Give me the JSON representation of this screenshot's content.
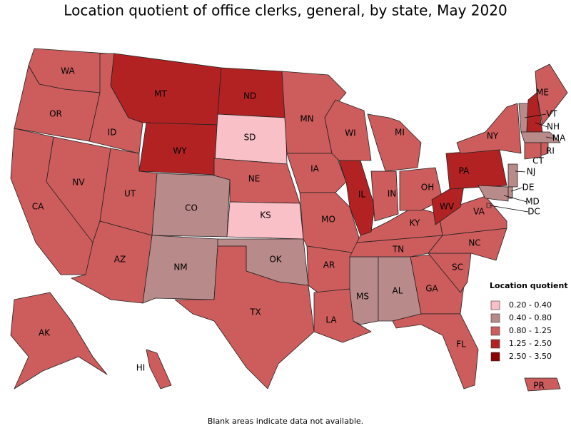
{
  "title": "Location quotient of office clerks, general, by state, May 2020",
  "legend": {
    "title": "Location quotient",
    "items": [
      {
        "label": "0.20 - 0.40",
        "color": "#f9c0c8"
      },
      {
        "label": "0.40 - 0.80",
        "color": "#b98a8a"
      },
      {
        "label": "0.80 - 1.25",
        "color": "#cd5c5c"
      },
      {
        "label": "1.25 - 2.50",
        "color": "#b22222"
      },
      {
        "label": "2.50 - 3.50",
        "color": "#8b0000"
      }
    ]
  },
  "states": [
    {
      "label": "WA",
      "color": "#cd5c5c"
    },
    {
      "label": "OR",
      "color": "#cd5c5c"
    },
    {
      "label": "CA",
      "color": "#cd5c5c"
    },
    {
      "label": "NV",
      "color": "#cd5c5c"
    },
    {
      "label": "ID",
      "color": "#cd5c5c"
    },
    {
      "label": "MT",
      "color": "#b22222"
    },
    {
      "label": "WY",
      "color": "#b22222"
    },
    {
      "label": "UT",
      "color": "#cd5c5c"
    },
    {
      "label": "AZ",
      "color": "#cd5c5c"
    },
    {
      "label": "CO",
      "color": "#b98a8a"
    },
    {
      "label": "NM",
      "color": "#b98a8a"
    },
    {
      "label": "ND",
      "color": "#b22222"
    },
    {
      "label": "SD",
      "color": "#f9c0c8"
    },
    {
      "label": "NE",
      "color": "#cd5c5c"
    },
    {
      "label": "KS",
      "color": "#f9c0c8"
    },
    {
      "label": "OK",
      "color": "#b98a8a"
    },
    {
      "label": "TX",
      "color": "#cd5c5c"
    },
    {
      "label": "MN",
      "color": "#cd5c5c"
    },
    {
      "label": "IA",
      "color": "#cd5c5c"
    },
    {
      "label": "MO",
      "color": "#cd5c5c"
    },
    {
      "label": "AR",
      "color": "#cd5c5c"
    },
    {
      "label": "LA",
      "color": "#cd5c5c"
    },
    {
      "label": "MS",
      "color": "#b98a8a"
    },
    {
      "label": "AL",
      "color": "#b98a8a"
    },
    {
      "label": "TN",
      "color": "#cd5c5c"
    },
    {
      "label": "KY",
      "color": "#cd5c5c"
    },
    {
      "label": "IL",
      "color": "#b22222"
    },
    {
      "label": "IN",
      "color": "#cd5c5c"
    },
    {
      "label": "OH",
      "color": "#cd5c5c"
    },
    {
      "label": "WI",
      "color": "#cd5c5c"
    },
    {
      "label": "MI",
      "color": "#cd5c5c"
    },
    {
      "label": "GA",
      "color": "#cd5c5c"
    },
    {
      "label": "FL",
      "color": "#cd5c5c"
    },
    {
      "label": "SC",
      "color": "#cd5c5c"
    },
    {
      "label": "NC",
      "color": "#cd5c5c"
    },
    {
      "label": "VA",
      "color": "#cd5c5c"
    },
    {
      "label": "WV",
      "color": "#b22222"
    },
    {
      "label": "PA",
      "color": "#b22222"
    },
    {
      "label": "NY",
      "color": "#cd5c5c"
    },
    {
      "label": "VT",
      "color": "#b98a8a"
    },
    {
      "label": "NH",
      "color": "#b22222"
    },
    {
      "label": "ME",
      "color": "#cd5c5c"
    },
    {
      "label": "MA",
      "color": "#b98a8a"
    },
    {
      "label": "CT",
      "color": "#cd5c5c"
    },
    {
      "label": "RI",
      "color": "#cd5c5c"
    },
    {
      "label": "NJ",
      "color": "#b98a8a"
    },
    {
      "label": "DE",
      "color": "#b98a8a"
    },
    {
      "label": "MD",
      "color": "#b98a8a"
    },
    {
      "label": "DC",
      "color": "#cd5c5c"
    },
    {
      "label": "AK",
      "color": "#cd5c5c"
    },
    {
      "label": "HI",
      "color": "#cd5c5c"
    },
    {
      "label": "PR",
      "color": "#cd5c5c"
    }
  ],
  "footnote": "Blank areas indicate data not available."
}
